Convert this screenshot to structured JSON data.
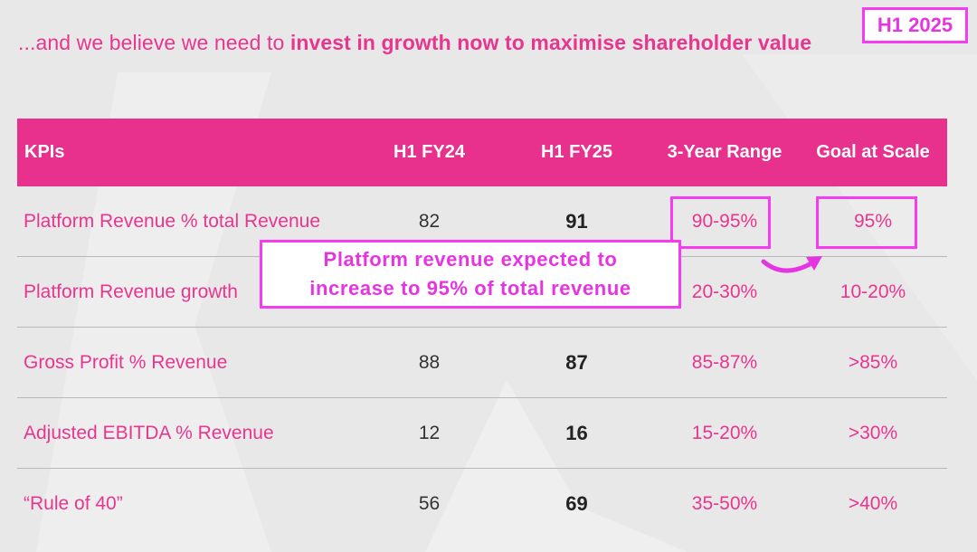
{
  "headline": {
    "plain": "...and we believe we need to ",
    "bold": "invest in growth now to maximise shareholder value"
  },
  "badge": "H1 2025",
  "table": {
    "headers": [
      "KPIs",
      "H1 FY24",
      "H1 FY25",
      "3-Year Range",
      "Goal at Scale"
    ],
    "rows": [
      [
        "Platform Revenue % total Revenue",
        "82",
        "91",
        "90-95%",
        "95%"
      ],
      [
        "Platform Revenue growth",
        "",
        "",
        "20-30%",
        "10-20%"
      ],
      [
        "Gross Profit % Revenue",
        "88",
        "87",
        "85-87%",
        ">85%"
      ],
      [
        "Adjusted EBITDA % Revenue",
        "12",
        "16",
        "15-20%",
        ">30%"
      ],
      [
        "“Rule of 40”",
        "56",
        "69",
        "35-50%",
        ">40%"
      ]
    ]
  },
  "callout": {
    "line1": "Platform revenue expected to",
    "line2": "increase to 95% of total revenue"
  },
  "colors": {
    "brand_pink": "#e8308d",
    "highlight_magenta": "#f53cf0",
    "background": "#e8e8e8"
  }
}
